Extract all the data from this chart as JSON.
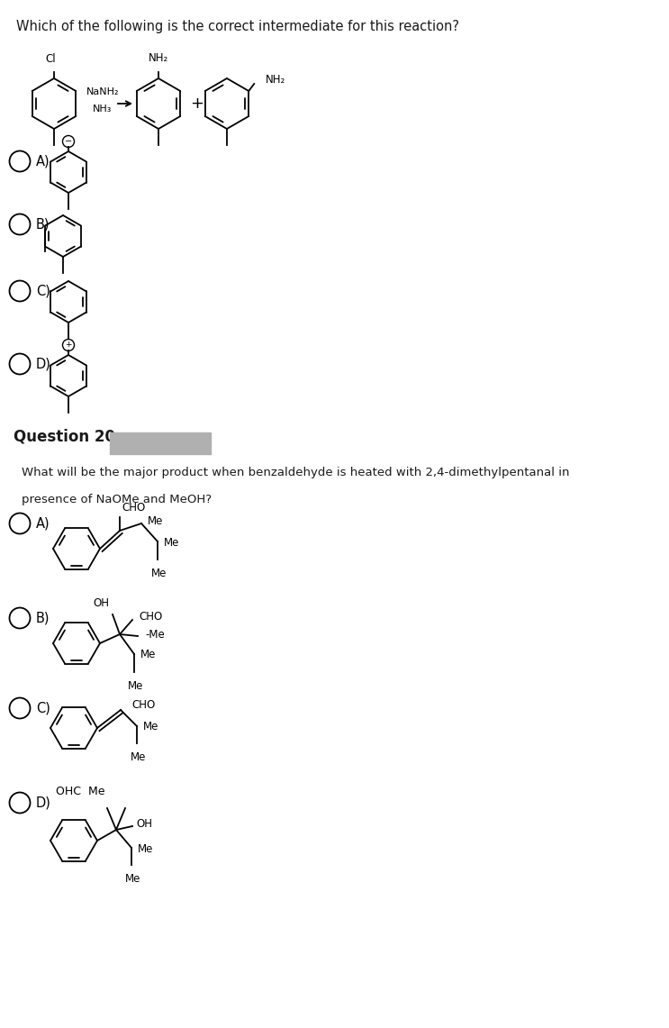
{
  "question1": "Which of the following is the correct intermediate for this reaction?",
  "question2_num": "Question 20",
  "reagent1": "NaNH₂",
  "reagent2": "NH₃",
  "q2_line1": "What will be the major product when benzaldehyde is heated with 2,4-dimethylpentanal in",
  "q2_line2": "presence of NaOMe and MeOH?",
  "bg_color": "#ffffff",
  "text_color": "#1a1a1a",
  "fig_width": 7.43,
  "fig_height": 11.41,
  "dpi": 100
}
